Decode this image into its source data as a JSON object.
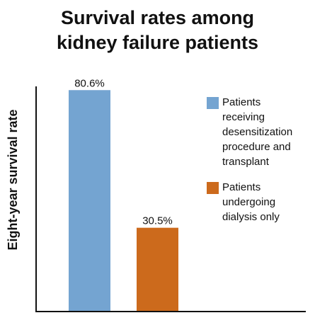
{
  "chart_data": {
    "type": "bar",
    "title_lines": [
      "Survival rates among",
      "kidney failure patients"
    ],
    "ylabel": "Eight-year survival rate",
    "ylim": [
      0,
      100
    ],
    "grid": false,
    "legend_position": "right",
    "categories": [
      [
        "Patients",
        "receiving",
        "desensitization",
        "procedure and",
        "transplant"
      ],
      [
        "Patients",
        "undergoing",
        "dialysis only"
      ]
    ],
    "values": [
      80.6,
      30.5
    ],
    "value_labels": [
      "80.6%",
      "30.5%"
    ],
    "colors": [
      "#74a4d1",
      "#cc6a1c"
    ]
  }
}
